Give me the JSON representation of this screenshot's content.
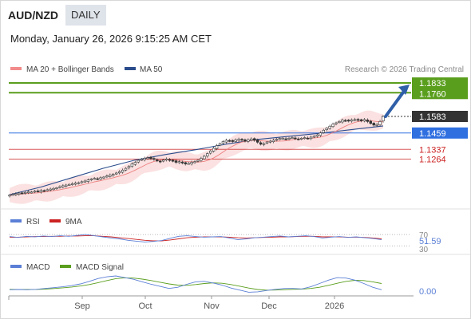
{
  "header": {
    "symbol": "AUD/NZD",
    "period": "DAILY",
    "datetime": "Monday, January 26, 2026 9:15:25 AM CET"
  },
  "chart_data": [
    {
      "type": "candlestick",
      "panel": "price",
      "legend": [
        {
          "label": "MA 20 + Bollinger Bands",
          "color": "#f28b8b"
        },
        {
          "label": "MA 50",
          "color": "#2b4c8c"
        }
      ],
      "copyright": "Research © 2026 Trading Central",
      "x_ticks": [
        "Sep",
        "Oct",
        "Nov",
        "Dec",
        "2026"
      ],
      "ylim": [
        1.0975,
        1.1875
      ],
      "close_levels": [
        1.0995,
        1.1,
        1.1005,
        1.101,
        1.1008,
        1.1015,
        1.102,
        1.1018,
        1.1025,
        1.1022,
        1.103,
        1.1028,
        1.1035,
        1.104,
        1.1045,
        1.105,
        1.1058,
        1.1065,
        1.107,
        1.1075,
        1.108,
        1.1085,
        1.1088,
        1.1095,
        1.11,
        1.1108,
        1.1115,
        1.112,
        1.1118,
        1.1125,
        1.113,
        1.1138,
        1.1145,
        1.115,
        1.116,
        1.117,
        1.1182,
        1.1195,
        1.121,
        1.1228,
        1.124,
        1.1255,
        1.1262,
        1.127,
        1.1275,
        1.1268,
        1.1262,
        1.125,
        1.1245,
        1.1258,
        1.1265,
        1.1255,
        1.1248,
        1.124,
        1.1245,
        1.1235,
        1.1228,
        1.1232,
        1.124,
        1.1245,
        1.1255,
        1.127,
        1.1285,
        1.1305,
        1.1325,
        1.1345,
        1.1365,
        1.138,
        1.1395,
        1.1405,
        1.14,
        1.1395,
        1.1408,
        1.1412,
        1.1405,
        1.1398,
        1.1408,
        1.1415,
        1.1405,
        1.139,
        1.1375,
        1.138,
        1.1392,
        1.1398,
        1.1405,
        1.1412,
        1.1418,
        1.142,
        1.1415,
        1.142,
        1.1425,
        1.1418,
        1.1412,
        1.142,
        1.1425,
        1.1418,
        1.1428,
        1.1435,
        1.1445,
        1.146,
        1.148,
        1.1495,
        1.151,
        1.1525,
        1.1535,
        1.1545,
        1.1555,
        1.1552,
        1.1548,
        1.1558,
        1.156,
        1.1555,
        1.155,
        1.156,
        1.1545,
        1.153,
        1.1518,
        1.1522,
        1.1545,
        1.1583
      ],
      "ma50_levels": [
        1.0998,
        1.1055,
        1.1125,
        1.1195,
        1.1255,
        1.1298,
        1.1335,
        1.1378,
        1.1412,
        1.1435,
        1.1458,
        1.1485,
        1.1512
      ],
      "bollinger_width": 0.0065,
      "levels": [
        {
          "value": 1.1833,
          "label": "1.1833",
          "color": "#5a9e1d",
          "style": "resistance"
        },
        {
          "value": 1.176,
          "label": "1.1760",
          "color": "#5a9e1d",
          "style": "resistance"
        },
        {
          "value": 1.1583,
          "label": "1.1583",
          "color": "#333333",
          "style": "last-price"
        },
        {
          "value": 1.1459,
          "label": "1.1459",
          "color": "#2f6fe0",
          "style": "pivot"
        },
        {
          "value": 1.1337,
          "label": "1.1337",
          "color": "#cc2222",
          "style": "support"
        },
        {
          "value": 1.1264,
          "label": "1.1264",
          "color": "#cc2222",
          "style": "support"
        }
      ]
    },
    {
      "type": "line",
      "panel": "rsi",
      "legend": [
        {
          "label": "RSI",
          "color": "#5b7fd6"
        },
        {
          "label": "9MA",
          "color": "#cc2222"
        }
      ],
      "axis_labels": [
        "70",
        "30"
      ],
      "value_label": "51.59",
      "ylim": [
        0,
        100
      ],
      "rsi": [
        63,
        60,
        64,
        62,
        65,
        63,
        66,
        64,
        67,
        70,
        66,
        62,
        58,
        55,
        50,
        47,
        44,
        46,
        49,
        57,
        64,
        66,
        63,
        61,
        62,
        63,
        58,
        52,
        55,
        59,
        61,
        63,
        65,
        62,
        64,
        66,
        63,
        58,
        61,
        63,
        60,
        62,
        59,
        56,
        52
      ],
      "ma9": [
        60,
        61,
        62,
        63,
        63,
        64,
        64,
        65,
        65,
        66,
        66,
        64,
        62,
        59,
        56,
        53,
        50,
        48,
        48,
        51,
        55,
        59,
        61,
        62,
        62,
        62,
        61,
        59,
        58,
        59,
        60,
        61,
        62,
        62,
        63,
        64,
        64,
        62,
        62,
        62,
        61,
        61,
        60,
        58,
        55
      ]
    },
    {
      "type": "line",
      "panel": "macd",
      "legend": [
        {
          "label": "MACD",
          "color": "#5b7fd6"
        },
        {
          "label": "MACD Signal",
          "color": "#5a9e1d"
        }
      ],
      "value_label": "0.00",
      "macd": [
        0.3,
        0.35,
        0.3,
        0.4,
        0.6,
        0.8,
        1,
        1.3,
        1.7,
        2.3,
        3,
        3.4,
        3.6,
        3.2,
        2.8,
        2.2,
        1.6,
        1.1,
        0.6,
        0.9,
        1.6,
        2.2,
        2.3,
        1.9,
        1.4,
        0.7,
        0.2,
        -0.3,
        -0.2,
        0.1,
        0.4,
        0.6,
        0.6,
        0.5,
        1,
        1.8,
        2.6,
        3.2,
        3.1,
        2.6,
        1.8,
        0.9,
        0.3
      ],
      "signal": [
        0.4,
        0.38,
        0.36,
        0.38,
        0.45,
        0.58,
        0.75,
        0.95,
        1.2,
        1.55,
        2,
        2.5,
        2.95,
        3.15,
        3.1,
        2.85,
        2.5,
        2.1,
        1.7,
        1.4,
        1.35,
        1.55,
        1.8,
        1.95,
        1.85,
        1.55,
        1.15,
        0.7,
        0.35,
        0.2,
        0.22,
        0.3,
        0.4,
        0.46,
        0.6,
        0.9,
        1.35,
        1.85,
        2.3,
        2.55,
        2.5,
        2.2,
        1.8
      ]
    }
  ]
}
